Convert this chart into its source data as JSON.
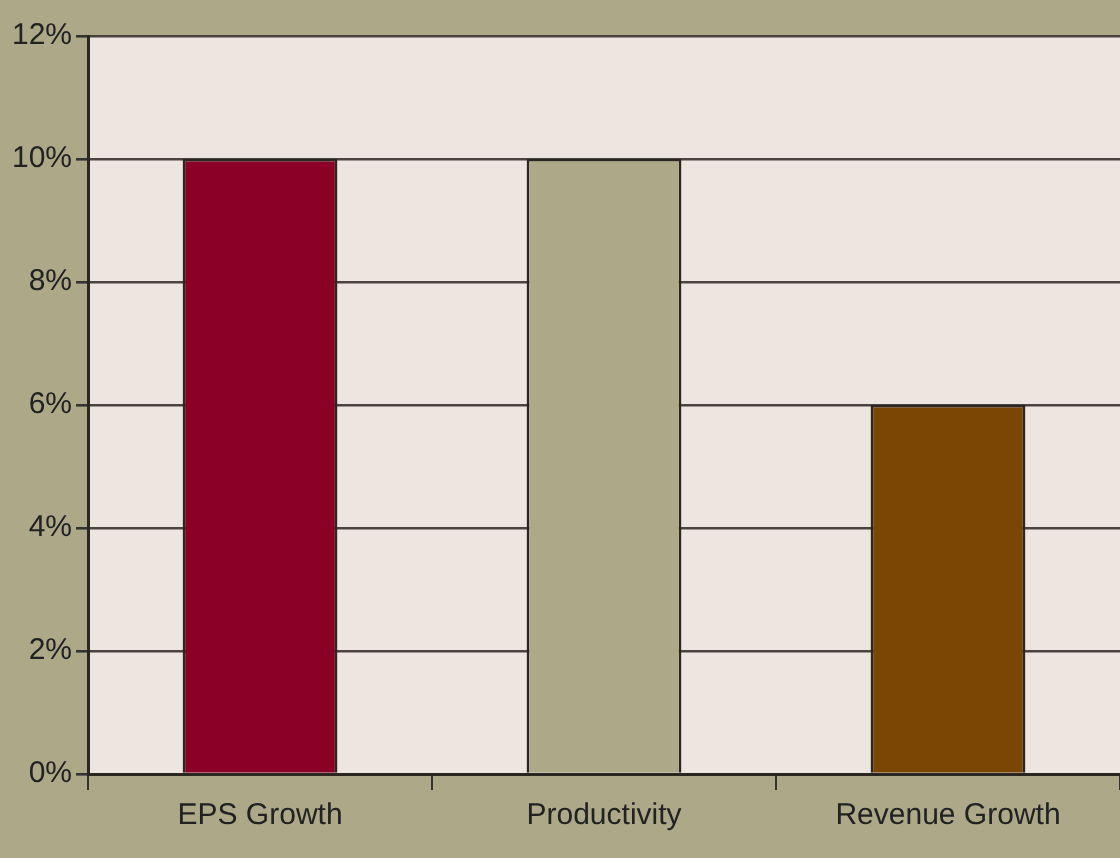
{
  "chart_data": {
    "type": "bar",
    "categories": [
      "EPS Growth",
      "Productivity",
      "Revenue Growth"
    ],
    "values": [
      10,
      10,
      6
    ],
    "colors": [
      "#8b0025",
      "#aca888",
      "#7a4604"
    ],
    "ylim": [
      0,
      12
    ],
    "yticks": [
      {
        "value": 0,
        "label": "0%"
      },
      {
        "value": 2,
        "label": "2%"
      },
      {
        "value": 4,
        "label": "4%"
      },
      {
        "value": 6,
        "label": "6%"
      },
      {
        "value": 8,
        "label": "8%"
      },
      {
        "value": 10,
        "label": "10%"
      },
      {
        "value": 12,
        "label": "12%"
      }
    ],
    "grid": "y",
    "legend": false
  }
}
